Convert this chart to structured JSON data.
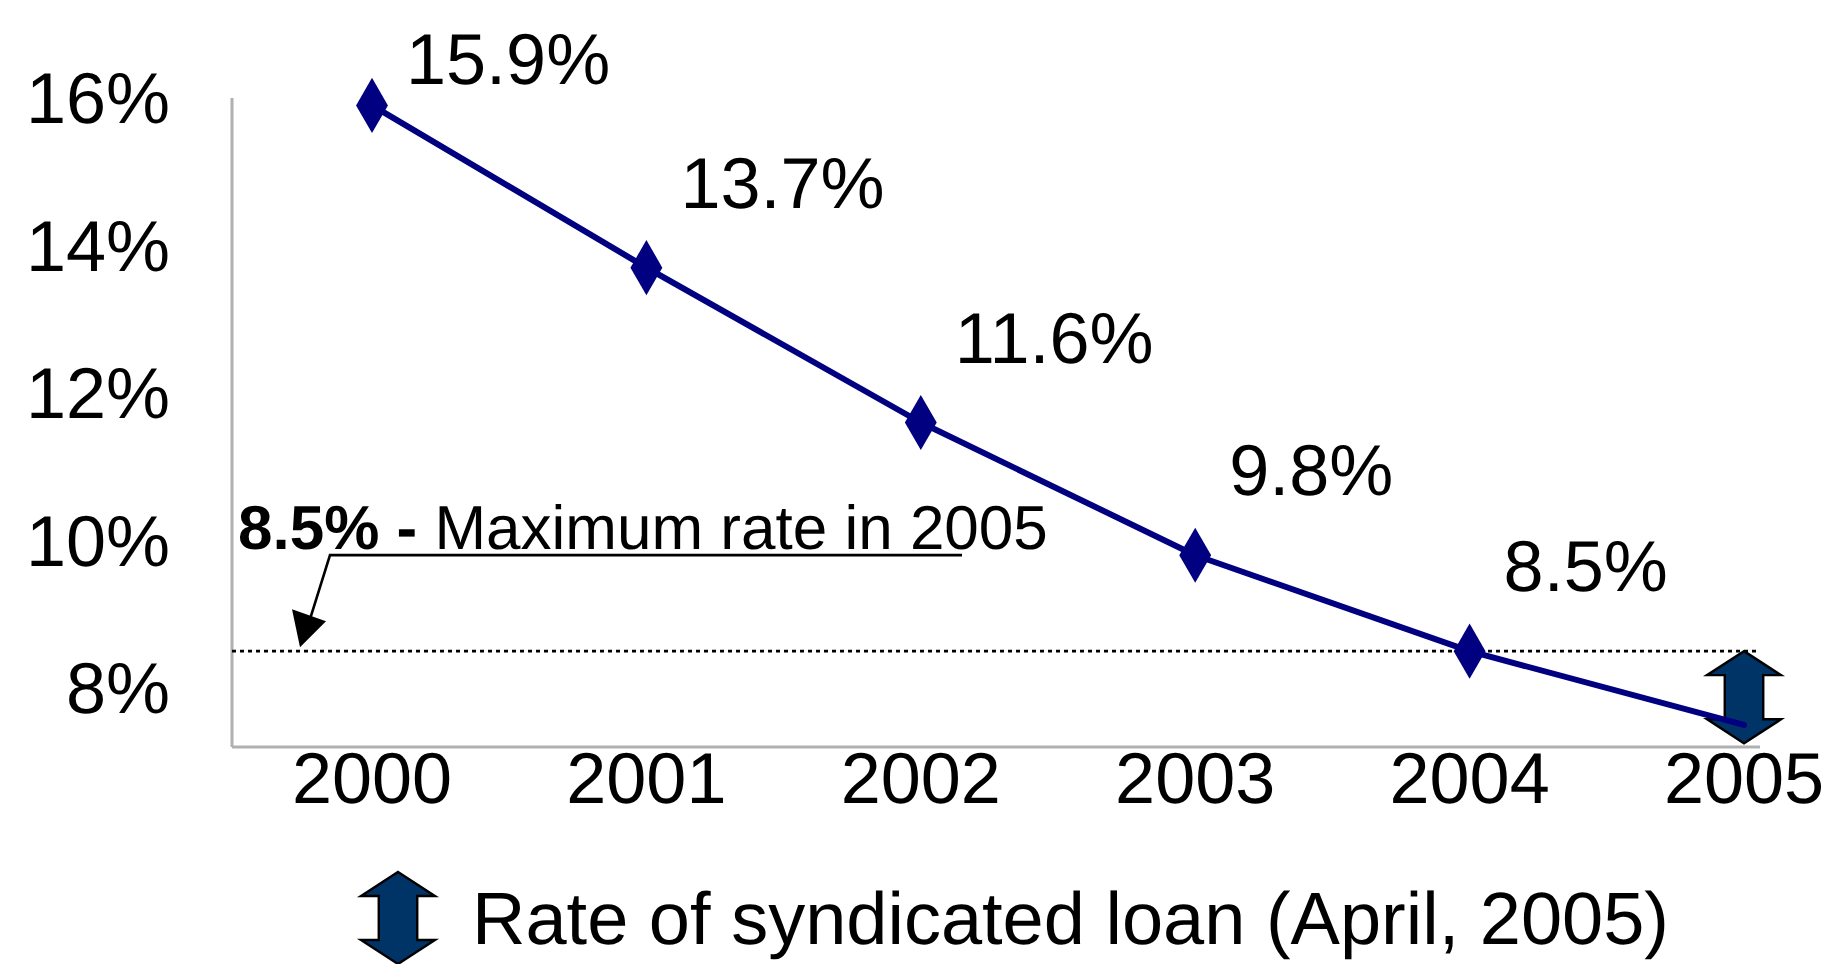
{
  "chart_data": {
    "type": "line",
    "categories": [
      "2000",
      "2001",
      "2002",
      "2003",
      "2004",
      "2005"
    ],
    "series": [
      {
        "color": "#000080",
        "values": [
          15.9,
          13.7,
          11.6,
          9.8,
          8.5,
          null
        ],
        "value_labels": [
          "15.9%",
          "13.7%",
          "11.6%",
          "9.8%",
          "8.5%",
          null
        ]
      },
      {
        "color": "#000080",
        "marker": "none",
        "values": [
          null,
          null,
          null,
          null,
          8.5,
          7.5
        ]
      },
      {
        "type": "bar",
        "name": "Rate of syndicated loan (April, 2005)",
        "color": "#003366",
        "values": [
          null,
          null,
          null,
          null,
          null,
          1.25
        ],
        "base": [
          null,
          null,
          null,
          null,
          null,
          7.25
        ]
      }
    ],
    "ylim": [
      7.2,
      16
    ],
    "yticks": [
      {
        "value": 8,
        "label": "8%"
      },
      {
        "value": 10,
        "label": "10%"
      },
      {
        "value": 12,
        "label": "12%"
      },
      {
        "value": 14,
        "label": "14%"
      },
      {
        "value": 16,
        "label": "16%"
      }
    ],
    "ref_lines": [
      {
        "axis": "y",
        "value": 8.5,
        "label": "8.5% - Maximum rate in 2005",
        "line_style": "dotted",
        "color": "#000000"
      }
    ],
    "marker": "diamond",
    "legend": "bottom"
  }
}
